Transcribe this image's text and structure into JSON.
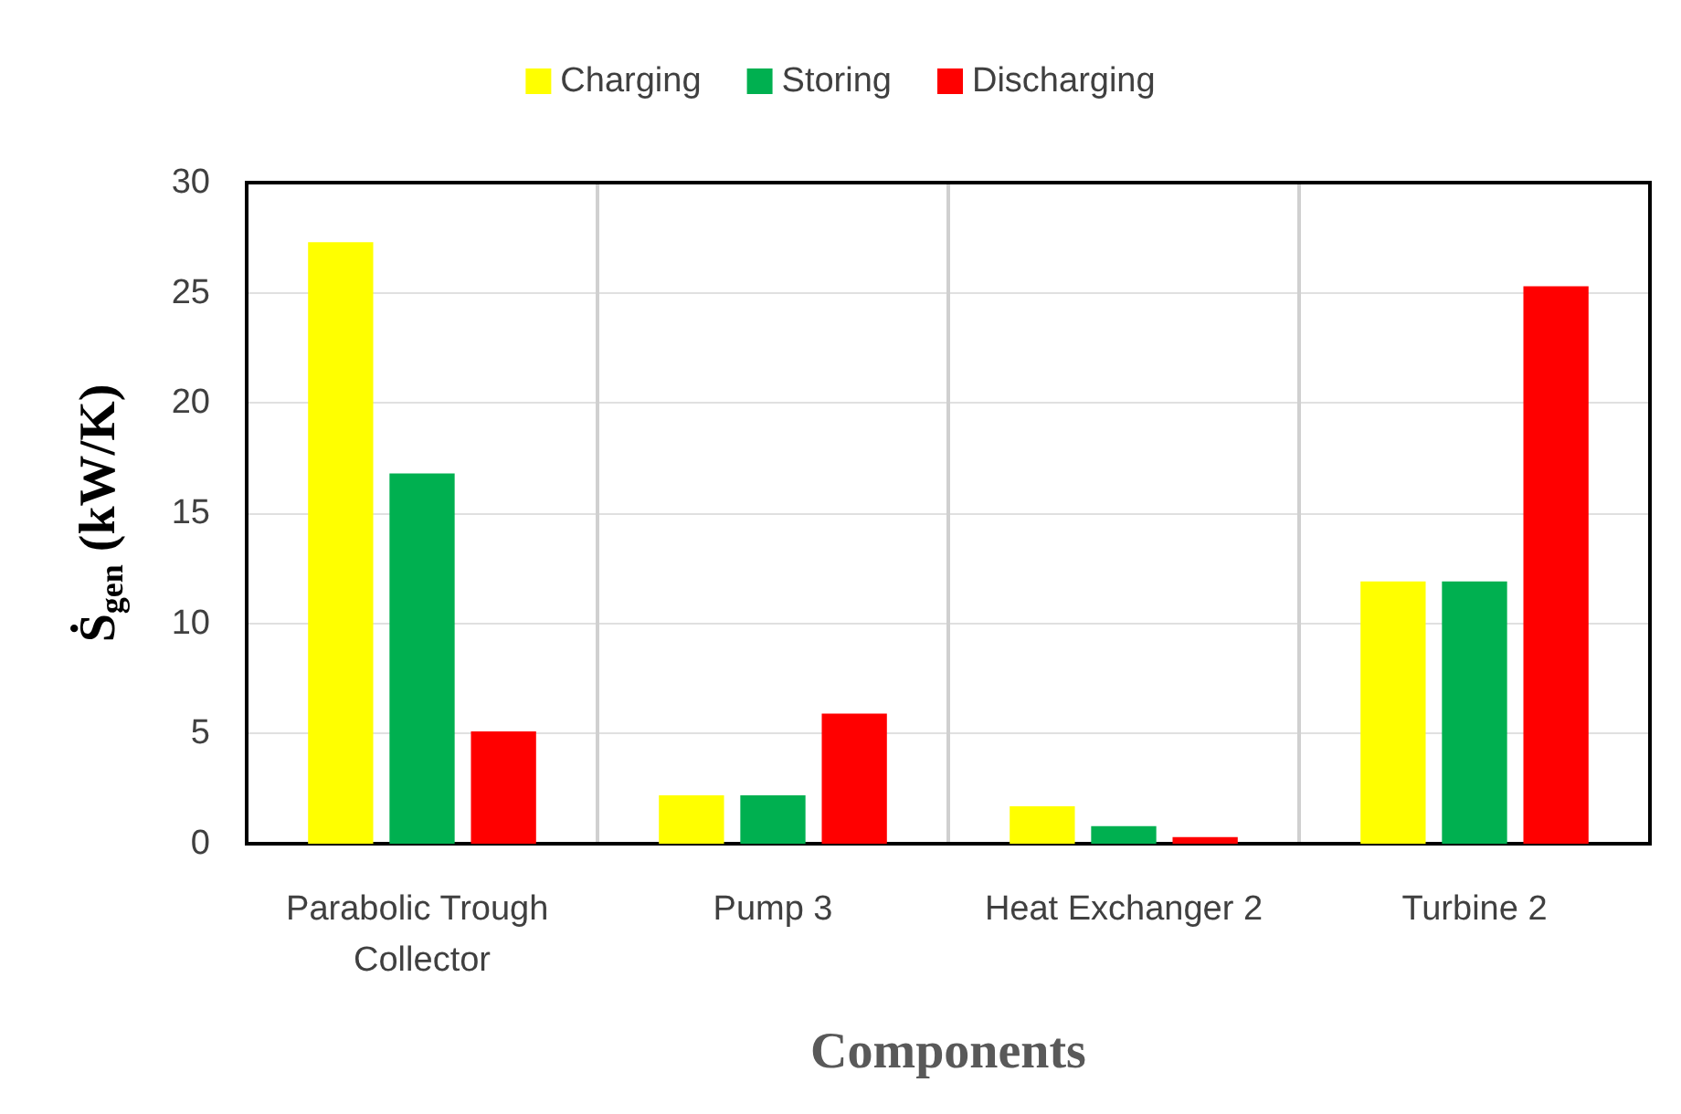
{
  "chart_data": {
    "type": "bar",
    "xlabel": "Components",
    "ylabel": "Ṡ$_{gen}$ (kW/K)",
    "categories": [
      "Parabolic Trough Collector",
      "Pump 3",
      "Heat Exchanger 2",
      "Turbine 2"
    ],
    "series": [
      {
        "name": "Charging",
        "color": "#ffff00",
        "values": [
          27.3,
          2.2,
          1.7,
          11.9
        ]
      },
      {
        "name": "Storing",
        "color": "#00b050",
        "values": [
          16.8,
          2.2,
          0.8,
          11.9
        ]
      },
      {
        "name": "Discharging",
        "color": "#ff0000",
        "values": [
          5.1,
          5.9,
          0.3,
          25.3
        ]
      }
    ],
    "ylim": [
      0,
      30
    ],
    "yticks": [
      0,
      5,
      10,
      15,
      20,
      25,
      30
    ],
    "grid": true,
    "legend": "top"
  }
}
